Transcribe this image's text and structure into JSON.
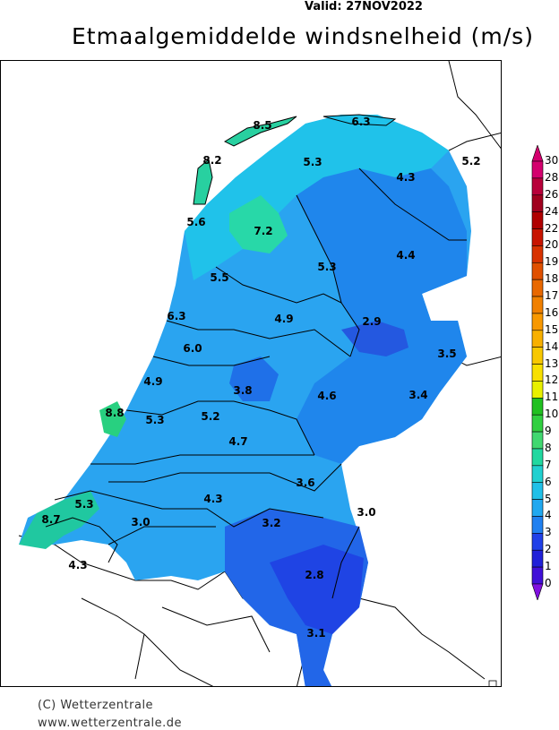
{
  "header": {
    "valid": "Valid:  27NOV2022",
    "title": "Etmaalgemiddelde windsnelheid (m/s)"
  },
  "footer": {
    "copyright": "(C) Wetterzentrale",
    "website": "www.wetterzentrale.de"
  },
  "map_values": [
    {
      "id": "v1",
      "text": "8.5",
      "color": "#000"
    },
    {
      "id": "v2",
      "text": "6.3",
      "color": "#000"
    },
    {
      "id": "v3",
      "text": "8.2",
      "color": "#000"
    },
    {
      "id": "v4",
      "text": "5.3",
      "color": "#000"
    },
    {
      "id": "v5",
      "text": "5.2",
      "color": "#000"
    },
    {
      "id": "v6",
      "text": "4.3",
      "color": "#000"
    },
    {
      "id": "v7",
      "text": "5.6",
      "color": "#000"
    },
    {
      "id": "v8",
      "text": "7.2",
      "color": "#000"
    },
    {
      "id": "v9",
      "text": "4.4",
      "color": "#000"
    },
    {
      "id": "v10",
      "text": "5.3",
      "color": "#000"
    },
    {
      "id": "v11",
      "text": "5.5",
      "color": "#000"
    },
    {
      "id": "v12",
      "text": "6.3",
      "color": "#000"
    },
    {
      "id": "v13",
      "text": "4.9",
      "color": "#000"
    },
    {
      "id": "v14",
      "text": "2.9",
      "color": "#000"
    },
    {
      "id": "v15",
      "text": "6.0",
      "color": "#000"
    },
    {
      "id": "v16",
      "text": "3.5",
      "color": "#000"
    },
    {
      "id": "v17",
      "text": "4.9",
      "color": "#000"
    },
    {
      "id": "v18",
      "text": "3.8",
      "color": "#000"
    },
    {
      "id": "v19",
      "text": "4.6",
      "color": "#000"
    },
    {
      "id": "v20",
      "text": "3.4",
      "color": "#000"
    },
    {
      "id": "v21",
      "text": "8.8",
      "color": "#000"
    },
    {
      "id": "v22",
      "text": "5.3",
      "color": "#000"
    },
    {
      "id": "v23",
      "text": "5.2",
      "color": "#000"
    },
    {
      "id": "v24",
      "text": "4.7",
      "color": "#000"
    },
    {
      "id": "v25",
      "text": "3.6",
      "color": "#000"
    },
    {
      "id": "v26",
      "text": "5.3",
      "color": "#000"
    },
    {
      "id": "v27",
      "text": "4.3",
      "color": "#000"
    },
    {
      "id": "v28",
      "text": "8.7",
      "color": "#000"
    },
    {
      "id": "v29",
      "text": "3.0",
      "color": "#000"
    },
    {
      "id": "v30",
      "text": "3.2",
      "color": "#000"
    },
    {
      "id": "v31",
      "text": "3.0",
      "color": "#000"
    },
    {
      "id": "v32",
      "text": "4.3",
      "color": "#000"
    },
    {
      "id": "v33",
      "text": "2.8",
      "color": "#000"
    },
    {
      "id": "v34",
      "text": "3.1",
      "color": "#000"
    }
  ],
  "colorbar": {
    "unit": "m/s",
    "labels": [
      "30",
      "28",
      "26",
      "24",
      "22",
      "20",
      "19",
      "18",
      "17",
      "16",
      "15",
      "14",
      "13",
      "12",
      "11",
      "10",
      "9",
      "8",
      "7",
      "6",
      "5",
      "4",
      "3",
      "2",
      "1",
      "0"
    ],
    "colors": [
      "#d4006e",
      "#b8003a",
      "#a0001e",
      "#b00000",
      "#c81400",
      "#d83200",
      "#e05000",
      "#e86800",
      "#f08000",
      "#f89800",
      "#f8b000",
      "#f8c800",
      "#f8e000",
      "#e8f000",
      "#20c020",
      "#30d040",
      "#40d870",
      "#20d8a0",
      "#20d0d0",
      "#20c0e8",
      "#20a8f0",
      "#2080f0",
      "#2040e8",
      "#2020d8",
      "#4010d8",
      "#8010e0"
    ],
    "range": [
      0,
      30
    ]
  }
}
